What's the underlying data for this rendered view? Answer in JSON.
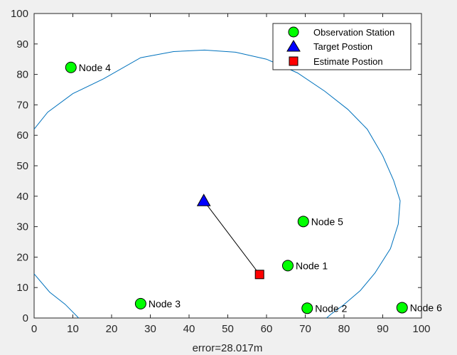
{
  "figure": {
    "background": "#f0f0f0",
    "axes_background": "#ffffff"
  },
  "chart_data": {
    "type": "scatter",
    "title": "",
    "xlabel": "error=28.017m",
    "ylabel": "",
    "xlim": [
      0,
      100
    ],
    "ylim": [
      0,
      100
    ],
    "xticks": [
      0,
      10,
      20,
      30,
      40,
      50,
      60,
      70,
      80,
      90,
      100
    ],
    "yticks": [
      0,
      10,
      20,
      30,
      40,
      50,
      60,
      70,
      80,
      90,
      100
    ],
    "grid": false,
    "legend_position": "top-right",
    "legend": [
      {
        "label": "Observation Station",
        "marker": "circle",
        "color": "#00ff00"
      },
      {
        "label": "Target Postion",
        "marker": "triangle",
        "color": "#0000ff"
      },
      {
        "label": "Estimate Postion",
        "marker": "square",
        "color": "#ff0000"
      }
    ],
    "stations": [
      {
        "label": "Node 1",
        "x": 65.5,
        "y": 17.2
      },
      {
        "label": "Node 2",
        "x": 70.5,
        "y": 3.2
      },
      {
        "label": "Node 3",
        "x": 27.5,
        "y": 4.7
      },
      {
        "label": "Node 4",
        "x": 9.5,
        "y": 82.3
      },
      {
        "label": "Node 5",
        "x": 69.5,
        "y": 31.7
      },
      {
        "label": "Node 6",
        "x": 95.0,
        "y": 3.4
      }
    ],
    "target": {
      "x": 43.8,
      "y": 38.5
    },
    "estimate": {
      "x": 58.2,
      "y": 14.3
    },
    "error_line_color": "#000000",
    "circle": {
      "color": "#0072bd",
      "points": [
        [
          0,
          62
        ],
        [
          3.5,
          67.6
        ],
        [
          10,
          73.7
        ],
        [
          18,
          78.6
        ],
        [
          27.5,
          85.5
        ],
        [
          36,
          87.5
        ],
        [
          44,
          88
        ],
        [
          52,
          87.3
        ],
        [
          60,
          85
        ],
        [
          68,
          80.5
        ],
        [
          75,
          74.5
        ],
        [
          81,
          68.5
        ],
        [
          86,
          62
        ],
        [
          90,
          53.3
        ],
        [
          92.8,
          45.2
        ],
        [
          94.5,
          38.5
        ],
        [
          94,
          30.8
        ],
        [
          92,
          22.8
        ],
        [
          88,
          14.8
        ],
        [
          84.2,
          9
        ],
        [
          79.8,
          4.2
        ],
        [
          76.7,
          1.3
        ],
        [
          75.5,
          0
        ]
      ],
      "points_left": [
        [
          0,
          14.5
        ],
        [
          4,
          8.5
        ],
        [
          8,
          4.5
        ],
        [
          11.5,
          0
        ]
      ]
    }
  }
}
